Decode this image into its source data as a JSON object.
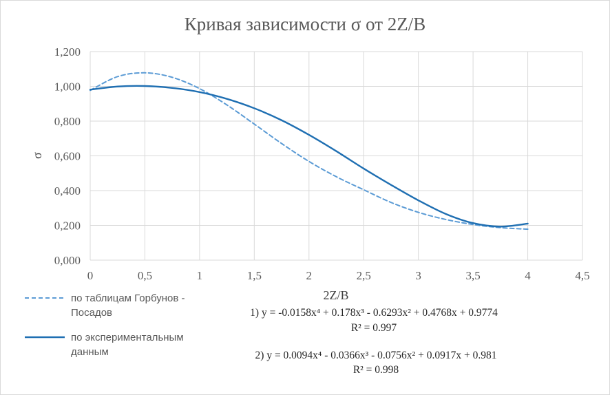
{
  "chart_data": {
    "type": "line",
    "title": "Кривая зависимости σ от 2Z/B",
    "xlabel": "2Z/B",
    "ylabel": "σ",
    "xlim": [
      0,
      4.5
    ],
    "ylim": [
      0,
      1.2
    ],
    "x_ticks": [
      "0",
      "0,5",
      "1",
      "1,5",
      "2",
      "2,5",
      "3",
      "3,5",
      "4",
      "4,5"
    ],
    "y_ticks": [
      "0,000",
      "0,200",
      "0,400",
      "0,600",
      "0,800",
      "1,000",
      "1,200"
    ],
    "grid": true,
    "legend_position": "bottom-left",
    "series": [
      {
        "name": "по таблицам Горбунов - Посадов",
        "style": "dashed",
        "color": "#5b9bd5",
        "x": [
          0,
          0.25,
          0.5,
          0.75,
          1,
          1.25,
          1.5,
          1.75,
          2,
          2.25,
          2.5,
          2.75,
          3,
          3.25,
          3.5,
          3.75,
          4
        ],
        "y": [
          0.977,
          1.056,
          1.078,
          1.052,
          0.987,
          0.893,
          0.783,
          0.671,
          0.568,
          0.48,
          0.405,
          0.332,
          0.275,
          0.234,
          0.205,
          0.187,
          0.178
        ]
      },
      {
        "name": "по экспериментальным данным",
        "style": "solid",
        "color": "#1f6fb2",
        "x": [
          0,
          0.25,
          0.5,
          0.75,
          1,
          1.25,
          1.5,
          1.75,
          2,
          2.25,
          2.5,
          2.75,
          3,
          3.25,
          3.5,
          3.75,
          4
        ],
        "y": [
          0.981,
          0.999,
          1.002,
          0.991,
          0.967,
          0.928,
          0.874,
          0.805,
          0.721,
          0.627,
          0.527,
          0.433,
          0.344,
          0.266,
          0.213,
          0.193,
          0.21
        ]
      }
    ],
    "annotations": {
      "eq1": "1) y = -0.0158x⁴ + 0.178x³ - 0.6293x² + 0.4768x + 0.9774",
      "r1": "R² = 0.997",
      "eq2": "2) y = 0.0094x⁴ - 0.0366x³ - 0.0756x² + 0.0917x + 0.981",
      "r2": "R² = 0.998"
    }
  },
  "legend": {
    "item1_line1": "по таблицам Горбунов -",
    "item1_line2": "Посадов",
    "item2_line1": "по экспериментальным",
    "item2_line2": "данным"
  },
  "colors": {
    "dashed": "#5b9bd5",
    "solid": "#1f6fb2",
    "grid": "#d9d9d9"
  }
}
